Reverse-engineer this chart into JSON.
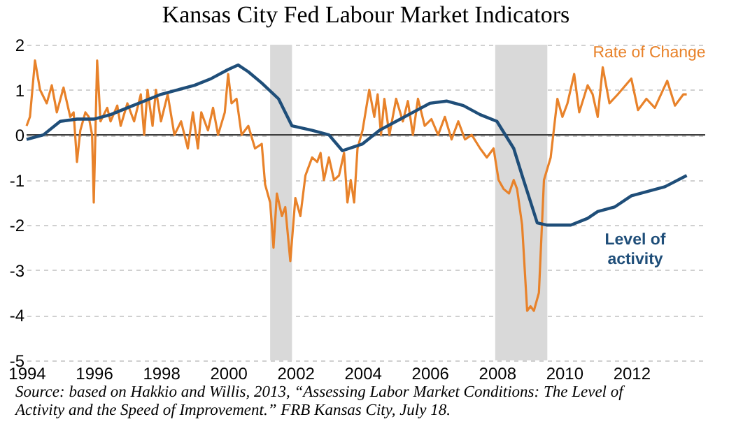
{
  "chart_data": {
    "type": "line",
    "title": "Kansas City Fed Labour Market Indicators",
    "xlim": [
      1994,
      2014.2
    ],
    "xticks": [
      1994,
      1996,
      1998,
      2000,
      2002,
      2004,
      2006,
      2008,
      2010,
      2012
    ],
    "ylim": [
      -5,
      2
    ],
    "yticks": [
      -5,
      -4,
      -3,
      -2,
      -1,
      0,
      1,
      2
    ],
    "grid": "y",
    "legend": false,
    "line_style": "solid",
    "marker": "none",
    "bands": [
      {
        "axis": "x",
        "from": 2001.25,
        "to": 2001.9,
        "color": "#d9d9d9"
      },
      {
        "axis": "x",
        "from": 2007.95,
        "to": 2009.5,
        "color": "#d9d9d9"
      }
    ],
    "ref_lines": [
      {
        "axis": "y",
        "value": 0,
        "color": "#404040"
      }
    ],
    "series": [
      {
        "name": "Rate of Change",
        "color": "#e8822a",
        "x": [
          1994.0,
          1994.1,
          1994.25,
          1994.4,
          1994.6,
          1994.75,
          1994.9,
          1995.1,
          1995.3,
          1995.4,
          1995.5,
          1995.6,
          1995.75,
          1995.85,
          1995.95,
          1996.0,
          1996.1,
          1996.2,
          1996.4,
          1996.5,
          1996.7,
          1996.8,
          1997.0,
          1997.2,
          1997.4,
          1997.5,
          1997.6,
          1997.75,
          1997.85,
          1998.0,
          1998.2,
          1998.4,
          1998.6,
          1998.8,
          1998.95,
          1999.1,
          1999.2,
          1999.4,
          1999.55,
          1999.7,
          1999.9,
          2000.0,
          2000.1,
          2000.25,
          2000.4,
          2000.6,
          2000.8,
          2001.0,
          2001.1,
          2001.25,
          2001.35,
          2001.45,
          2001.6,
          2001.7,
          2001.85,
          2002.0,
          2002.15,
          2002.3,
          2002.5,
          2002.65,
          2002.75,
          2002.85,
          2003.0,
          2003.15,
          2003.3,
          2003.45,
          2003.55,
          2003.65,
          2003.75,
          2003.85,
          2004.0,
          2004.2,
          2004.35,
          2004.45,
          2004.55,
          2004.65,
          2004.8,
          2005.0,
          2005.2,
          2005.35,
          2005.5,
          2005.65,
          2005.85,
          2006.05,
          2006.25,
          2006.45,
          2006.65,
          2006.85,
          2007.05,
          2007.25,
          2007.5,
          2007.7,
          2007.9,
          2008.05,
          2008.2,
          2008.36,
          2008.5,
          2008.6,
          2008.75,
          2008.9,
          2009.0,
          2009.1,
          2009.25,
          2009.4,
          2009.6,
          2009.8,
          2009.95,
          2010.1,
          2010.3,
          2010.45,
          2010.7,
          2010.85,
          2011.0,
          2011.15,
          2011.35,
          2011.6,
          2012.0,
          2012.2,
          2012.45,
          2012.7,
          2013.07,
          2013.3,
          2013.55,
          2013.65
        ],
        "values": [
          0.2,
          0.4,
          1.65,
          1.0,
          0.7,
          1.1,
          0.5,
          1.05,
          0.4,
          0.5,
          -0.6,
          0.1,
          0.5,
          0.4,
          0.0,
          -1.5,
          1.65,
          0.3,
          0.6,
          0.3,
          0.65,
          0.2,
          0.7,
          0.3,
          0.9,
          0.0,
          1.0,
          0.2,
          1.0,
          0.3,
          0.9,
          0.0,
          0.3,
          -0.3,
          0.5,
          -0.3,
          0.5,
          0.1,
          0.6,
          0.0,
          0.5,
          1.35,
          0.7,
          0.8,
          0.0,
          0.2,
          -0.3,
          -0.2,
          -1.1,
          -1.5,
          -2.5,
          -1.3,
          -1.8,
          -1.6,
          -2.8,
          -1.4,
          -1.8,
          -0.9,
          -0.5,
          -0.6,
          -0.4,
          -1.0,
          -0.5,
          -1.0,
          -0.9,
          -0.4,
          -1.5,
          -1.0,
          -1.5,
          -0.3,
          0.1,
          1.0,
          0.4,
          0.9,
          0.0,
          0.8,
          0.0,
          0.8,
          0.3,
          0.75,
          0.0,
          0.8,
          0.2,
          0.35,
          0.0,
          0.4,
          -0.1,
          0.3,
          -0.1,
          0.0,
          -0.3,
          -0.5,
          -0.3,
          -1.0,
          -1.2,
          -1.3,
          -1.0,
          -1.2,
          -2.0,
          -3.9,
          -3.8,
          -3.9,
          -3.5,
          -1.0,
          -0.5,
          0.8,
          0.4,
          0.7,
          1.35,
          0.5,
          1.1,
          0.9,
          0.4,
          1.5,
          0.7,
          0.9,
          1.25,
          0.55,
          0.8,
          0.6,
          1.2,
          0.65,
          0.9,
          0.9
        ]
      },
      {
        "name": "Level of activity",
        "color": "#1f4e79",
        "x": [
          1994.0,
          1994.5,
          1995.0,
          1995.5,
          1996.0,
          1996.5,
          1997.0,
          1997.5,
          1998.0,
          1998.5,
          1999.0,
          1999.5,
          2000.0,
          2000.3,
          2000.6,
          2001.0,
          2001.5,
          2001.9,
          2002.5,
          2003.0,
          2003.4,
          2004.0,
          2004.5,
          2005.0,
          2005.5,
          2006.0,
          2006.5,
          2007.0,
          2007.5,
          2008.0,
          2008.5,
          2008.75,
          2009.2,
          2009.5,
          2009.8,
          2010.2,
          2010.7,
          2011.0,
          2011.5,
          2012.0,
          2012.5,
          2013.0,
          2013.65
        ],
        "values": [
          -0.1,
          0.0,
          0.3,
          0.35,
          0.35,
          0.45,
          0.6,
          0.75,
          0.9,
          1.0,
          1.1,
          1.25,
          1.45,
          1.55,
          1.4,
          1.15,
          0.8,
          0.2,
          0.1,
          0.0,
          -0.35,
          -0.2,
          0.1,
          0.3,
          0.5,
          0.7,
          0.75,
          0.65,
          0.45,
          0.3,
          -0.3,
          -0.9,
          -1.95,
          -2.0,
          -2.0,
          -2.0,
          -1.85,
          -1.7,
          -1.6,
          -1.35,
          -1.25,
          -1.15,
          -0.9
        ]
      }
    ],
    "annotations": [
      "Source: based on Hakkio and Willis, 2013, “Assessing Labor Market Conditions: The Level of Activity and  the Speed of Improvement.” FRB Kansas City, July 18."
    ]
  }
}
